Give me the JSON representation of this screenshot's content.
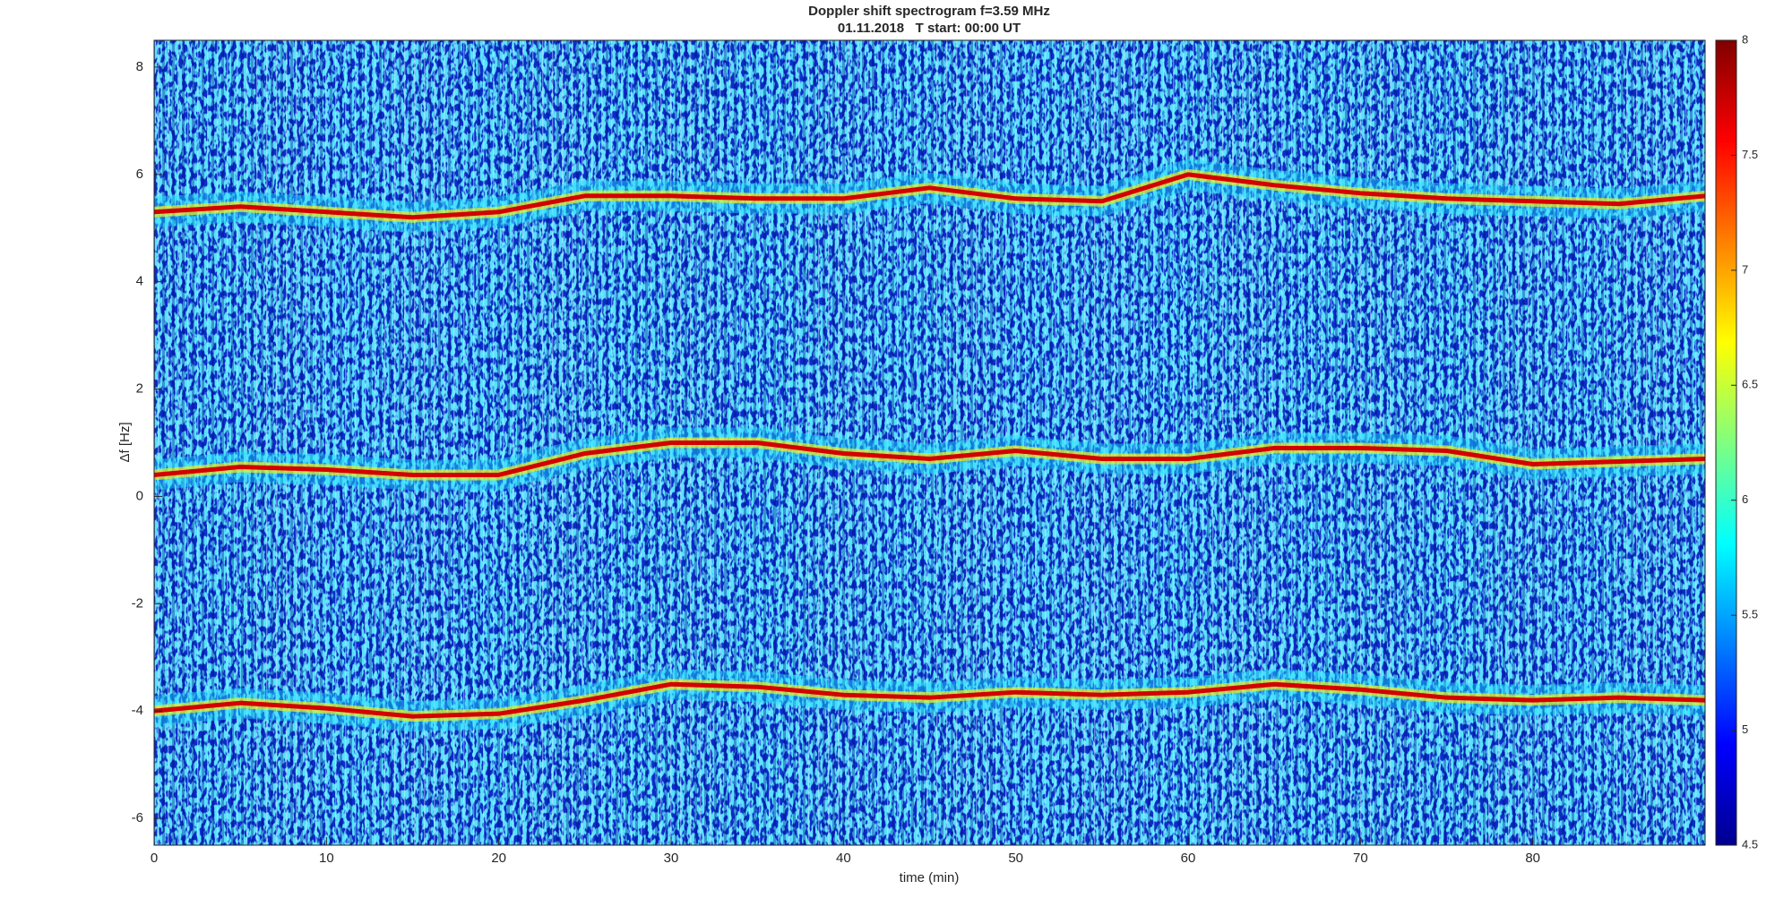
{
  "chart_data": {
    "type": "spectrogram",
    "title": "Doppler shift spectrogram f=3.59 MHz",
    "subtitle": "01.11.2018   T start: 00:00 UT",
    "xlabel": "time (min)",
    "ylabel": "Δf [Hz]",
    "xlim": [
      0,
      90
    ],
    "xticks": [
      0,
      10,
      20,
      30,
      40,
      50,
      60,
      70,
      80
    ],
    "ylim": [
      -6.5,
      8.5
    ],
    "yticks": [
      -6,
      -4,
      -2,
      0,
      2,
      4,
      6,
      8
    ],
    "colormap": "jet",
    "clim": [
      4.5,
      8
    ],
    "cticks": [
      4.5,
      5,
      5.5,
      6,
      6.5,
      7,
      7.5,
      8
    ],
    "x": [
      0,
      5,
      10,
      15,
      20,
      25,
      30,
      35,
      40,
      45,
      50,
      55,
      60,
      65,
      70,
      75,
      80,
      85,
      90
    ],
    "series": [
      {
        "color": "#d40000",
        "values": [
          5.3,
          5.4,
          5.3,
          5.2,
          5.3,
          5.6,
          5.6,
          5.55,
          5.55,
          5.75,
          5.55,
          5.5,
          6.0,
          5.8,
          5.65,
          5.55,
          5.5,
          5.45,
          5.6
        ]
      },
      {
        "color": "#d40000",
        "values": [
          0.4,
          0.55,
          0.5,
          0.4,
          0.4,
          0.8,
          1.0,
          1.0,
          0.8,
          0.7,
          0.85,
          0.7,
          0.7,
          0.9,
          0.9,
          0.85,
          0.6,
          0.65,
          0.7
        ]
      },
      {
        "color": "#d40000",
        "values": [
          -4.0,
          -3.85,
          -3.95,
          -4.1,
          -4.05,
          -3.8,
          -3.5,
          -3.55,
          -3.7,
          -3.75,
          -3.65,
          -3.7,
          -3.65,
          -3.5,
          -3.6,
          -3.75,
          -3.8,
          -3.75,
          -3.8
        ]
      }
    ]
  }
}
